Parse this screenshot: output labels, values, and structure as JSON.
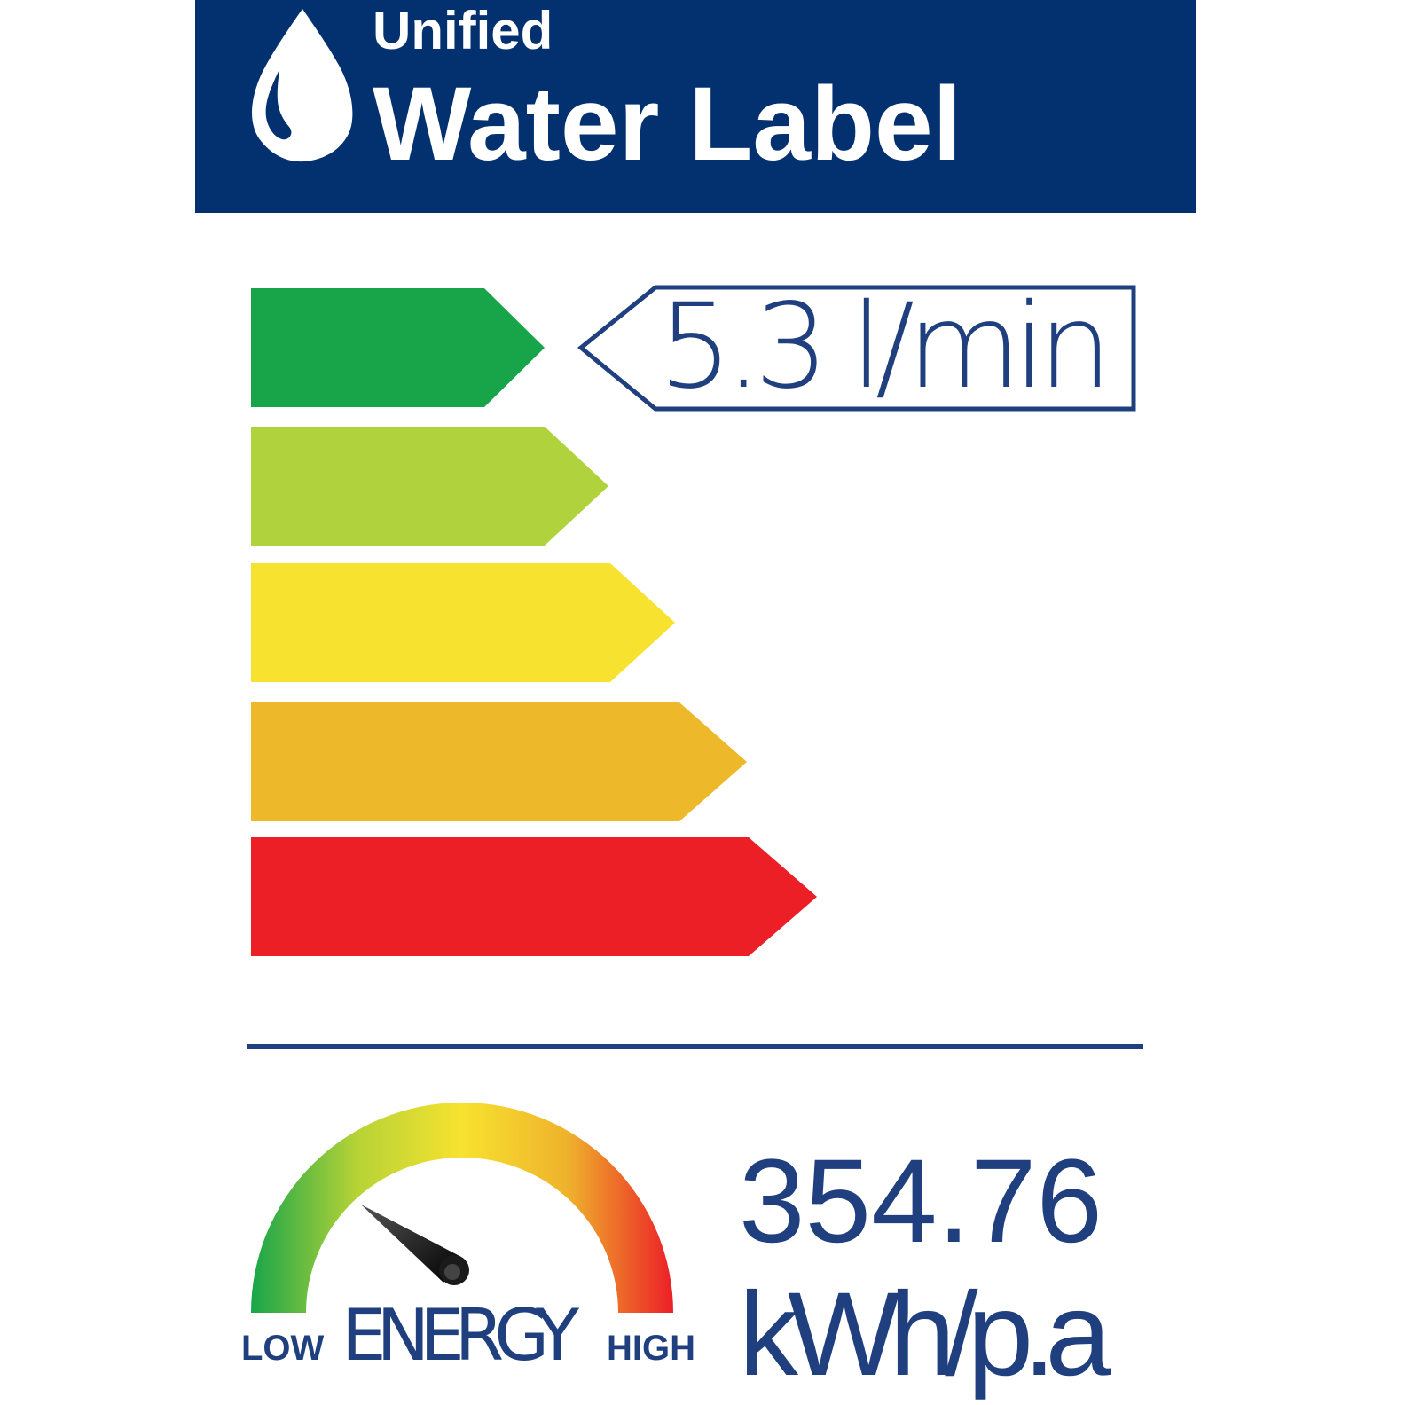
{
  "header": {
    "line1": "Unified",
    "line2": "Water Label",
    "logo_icon": "water-drop-icon",
    "background": "#03316f"
  },
  "rating": {
    "bands": [
      {
        "color": "#18a54a"
      },
      {
        "color": "#b0d23c"
      },
      {
        "color": "#f7e22f"
      },
      {
        "color": "#eeb82b"
      },
      {
        "color": "#ec1f27"
      }
    ],
    "selected_band": 1,
    "flow_value": "5.3 l/min"
  },
  "energy": {
    "label": "ENERGY",
    "low_label": "LOW",
    "high_label": "HIGH",
    "value": "354.76",
    "unit": "kWh/p.a",
    "gauge_level_percent": 25
  }
}
